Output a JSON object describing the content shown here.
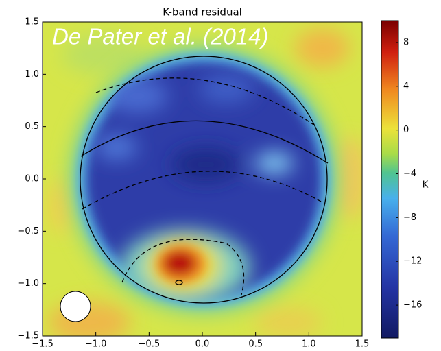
{
  "chart_data": {
    "type": "heatmap",
    "title": "K-band residual",
    "annotation": "De Pater et al. (2014)",
    "xlim": [
      -1.5,
      1.5
    ],
    "ylim": [
      -1.5,
      1.5
    ],
    "xticks": [
      {
        "value": -1.5,
        "label": "−1.5"
      },
      {
        "value": -1.0,
        "label": "−1.0"
      },
      {
        "value": -0.5,
        "label": "−0.5"
      },
      {
        "value": 0,
        "label": "0.0"
      },
      0.5,
      {
        "value": 1.0,
        "label": "1.0"
      },
      1.5
    ],
    "yticks": [
      1.5,
      {
        "value": 1.0,
        "label": "1.0"
      },
      0.5,
      {
        "value": 0,
        "label": "0.0"
      },
      {
        "value": -0.5,
        "label": "−0.5"
      },
      {
        "value": -1.0,
        "label": "−1.0"
      },
      {
        "value": -1.5,
        "label": "−1.5"
      }
    ],
    "colorbar": {
      "label": "K",
      "lim": [
        -19,
        10
      ],
      "ticks": [
        8,
        4,
        0,
        {
          "value": -4,
          "label": "−4"
        },
        {
          "value": -8,
          "label": "−8"
        },
        {
          "value": -12,
          "label": "−12"
        },
        {
          "value": -16,
          "label": "−16"
        }
      ]
    }
  }
}
